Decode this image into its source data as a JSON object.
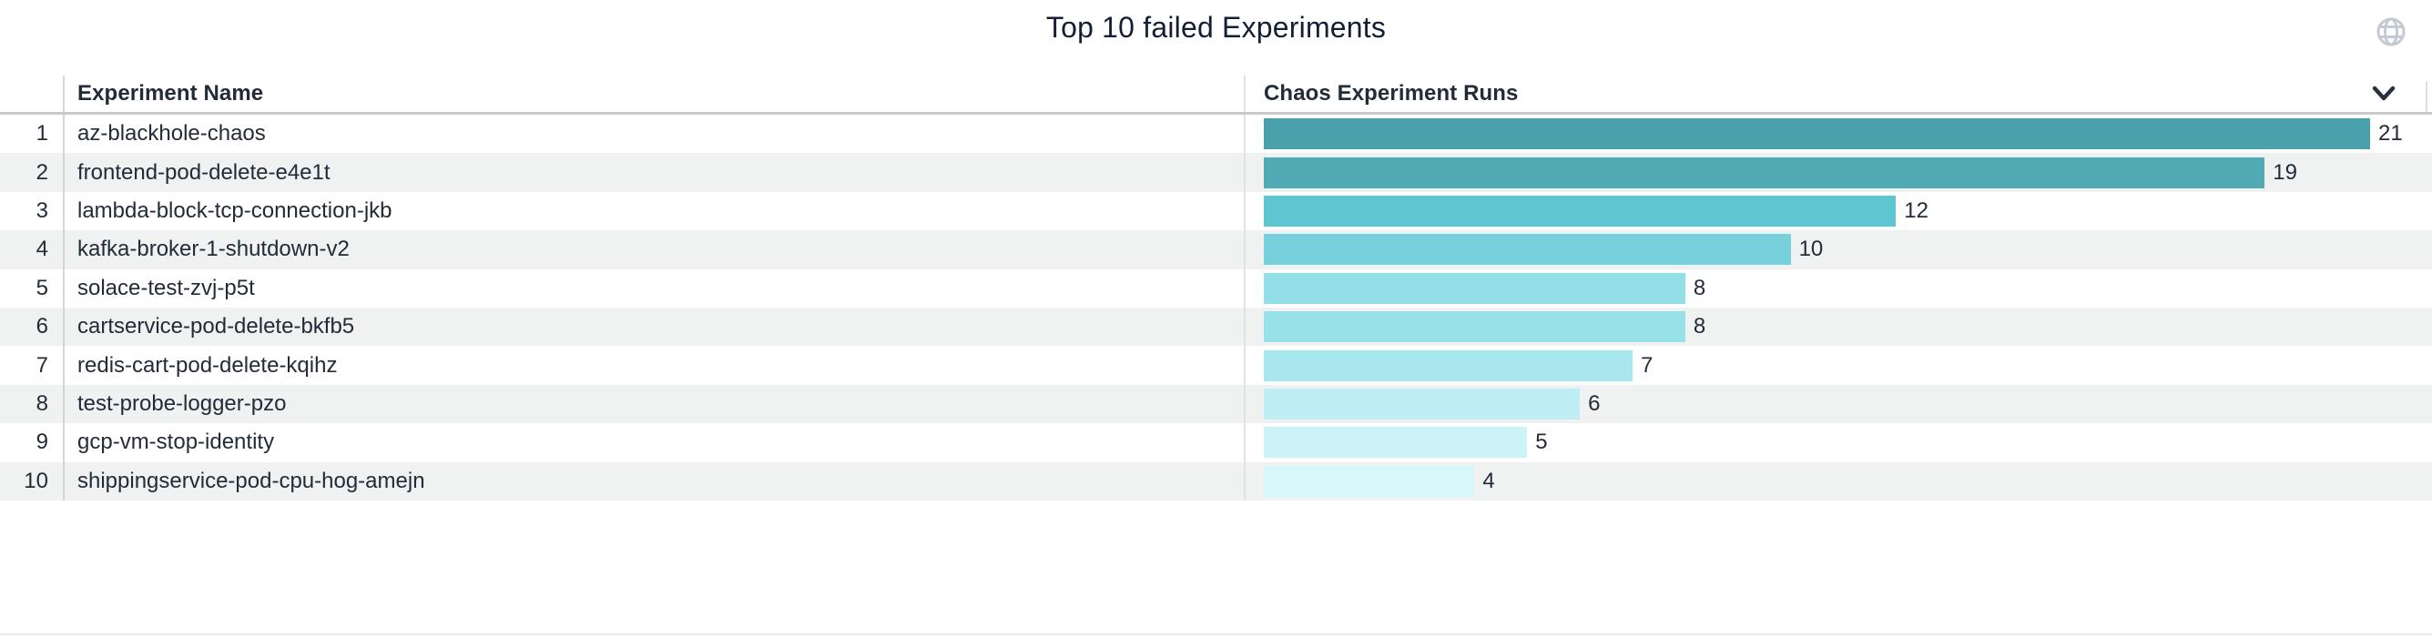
{
  "widget": {
    "title": "Top 10 failed Experiments",
    "header": {
      "name_column": "Experiment Name",
      "runs_column": "Chaos Experiment Runs"
    },
    "rows": [
      {
        "rank": "1",
        "name": "az-blackhole-chaos",
        "runs": 21,
        "bar_color": "#4aa1ab"
      },
      {
        "rank": "2",
        "name": "frontend-pod-delete-e4e1t",
        "runs": 19,
        "bar_color": "#50abb4"
      },
      {
        "rank": "3",
        "name": "lambda-block-tcp-connection-jkb",
        "runs": 12,
        "bar_color": "#5dc6d1"
      },
      {
        "rank": "4",
        "name": "kafka-broker-1-shutdown-v2",
        "runs": 10,
        "bar_color": "#76d1dd"
      },
      {
        "rank": "5",
        "name": "solace-test-zvj-p5t",
        "runs": 8,
        "bar_color": "#92dfe7"
      },
      {
        "rank": "6",
        "name": "cartservice-pod-delete-bkfb5",
        "runs": 8,
        "bar_color": "#98e1e8"
      },
      {
        "rank": "7",
        "name": "redis-cart-pod-delete-kqihz",
        "runs": 7,
        "bar_color": "#a8e7ee"
      },
      {
        "rank": "8",
        "name": "test-probe-logger-pzo",
        "runs": 6,
        "bar_color": "#bdeef3"
      },
      {
        "rank": "9",
        "name": "gcp-vm-stop-identity",
        "runs": 5,
        "bar_color": "#ccf3f8"
      },
      {
        "rank": "10",
        "name": "shippingservice-pod-cpu-hog-amejn",
        "runs": 4,
        "bar_color": "#d8f7fb"
      }
    ],
    "icons": {
      "globe": "globe-icon",
      "sort": "chevron-down-icon"
    },
    "colors": {
      "title_text": "#121f35",
      "header_text": "#222c38",
      "row_text": "#222c38",
      "stripe_bg": "#f0f1f1",
      "globe_icon": "#c3cad3",
      "chevron_icon": "#28323d"
    }
  },
  "chart_data": {
    "type": "bar",
    "orientation": "horizontal",
    "title": "Top 10 failed Experiments",
    "categories": [
      "az-blackhole-chaos",
      "frontend-pod-delete-e4e1t",
      "lambda-block-tcp-connection-jkb",
      "kafka-broker-1-shutdown-v2",
      "solace-test-zvj-p5t",
      "cartservice-pod-delete-bkfb5",
      "redis-cart-pod-delete-kqihz",
      "test-probe-logger-pzo",
      "gcp-vm-stop-identity",
      "shippingservice-pod-cpu-hog-amejn"
    ],
    "values": [
      21,
      19,
      12,
      10,
      8,
      8,
      7,
      6,
      5,
      4
    ],
    "series_name": "Chaos Experiment Runs",
    "xlabel": "Chaos Experiment Runs",
    "ylabel": "Experiment Name",
    "xlim": [
      0,
      21
    ],
    "data_labels": true,
    "grid": false,
    "legend": false,
    "bar_colors": [
      "#4aa1ab",
      "#50abb4",
      "#5dc6d1",
      "#76d1dd",
      "#92dfe7",
      "#98e1e8",
      "#a8e7ee",
      "#bdeef3",
      "#ccf3f8",
      "#d8f7fb"
    ]
  }
}
